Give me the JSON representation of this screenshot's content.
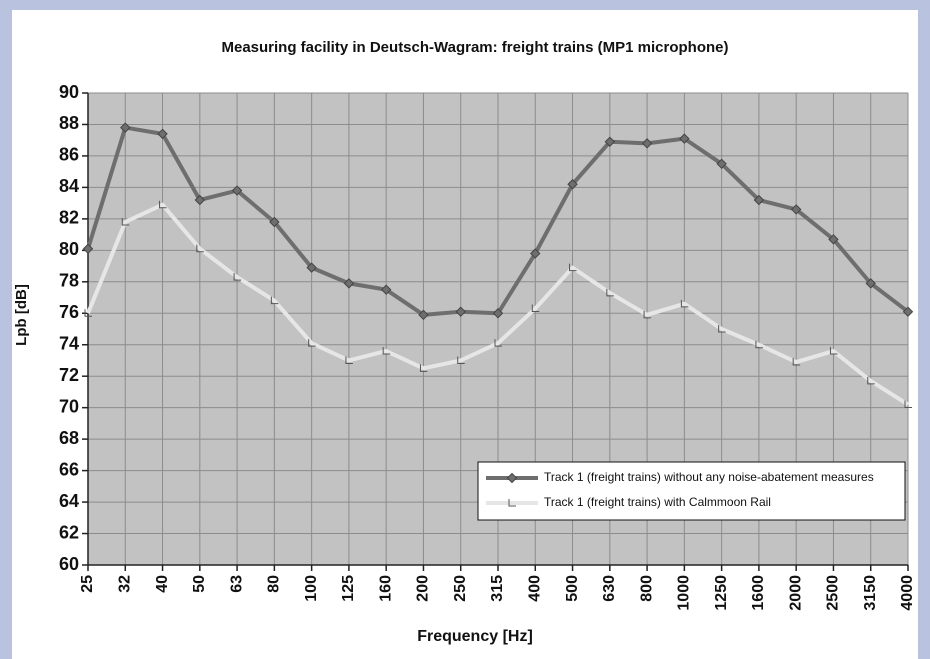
{
  "chart_data": {
    "type": "line",
    "title": "Measuring facility in Deutsch-Wagram: freight trains (MP1 microphone)",
    "x_label": "Frequency [Hz]",
    "y_label": "Lpb [dB]",
    "categories": [
      "25",
      "32",
      "40",
      "50",
      "63",
      "80",
      "100",
      "125",
      "160",
      "200",
      "250",
      "315",
      "400",
      "500",
      "630",
      "800",
      "1000",
      "1250",
      "1600",
      "2000",
      "2500",
      "3150",
      "4000"
    ],
    "series": [
      {
        "name": "Track 1 (freight trains) without any noise-abatement measures",
        "color": "#6e6e6e",
        "marker": "diamond",
        "values": [
          80.1,
          87.8,
          87.4,
          83.2,
          83.8,
          81.8,
          78.9,
          77.9,
          77.5,
          75.9,
          76.1,
          76.0,
          79.8,
          84.2,
          86.9,
          86.8,
          87.1,
          85.5,
          83.2,
          82.6,
          80.7,
          77.9,
          76.1
        ]
      },
      {
        "name": "Track 1 (freight trains) with Calmmoon Rail",
        "color": "#e6e6e6",
        "marker": "triangle",
        "values": [
          76.0,
          81.8,
          82.9,
          80.1,
          78.3,
          76.8,
          74.1,
          73.0,
          73.6,
          72.5,
          73.0,
          74.1,
          76.3,
          78.9,
          77.3,
          75.9,
          76.6,
          75.0,
          74.0,
          72.9,
          73.6,
          71.7,
          70.2
        ]
      }
    ],
    "ylim": [
      60,
      90
    ],
    "yticks": [
      60,
      62,
      64,
      66,
      68,
      70,
      72,
      74,
      76,
      78,
      80,
      82,
      84,
      86,
      88,
      90
    ],
    "grid": true,
    "legend": "lower right"
  }
}
